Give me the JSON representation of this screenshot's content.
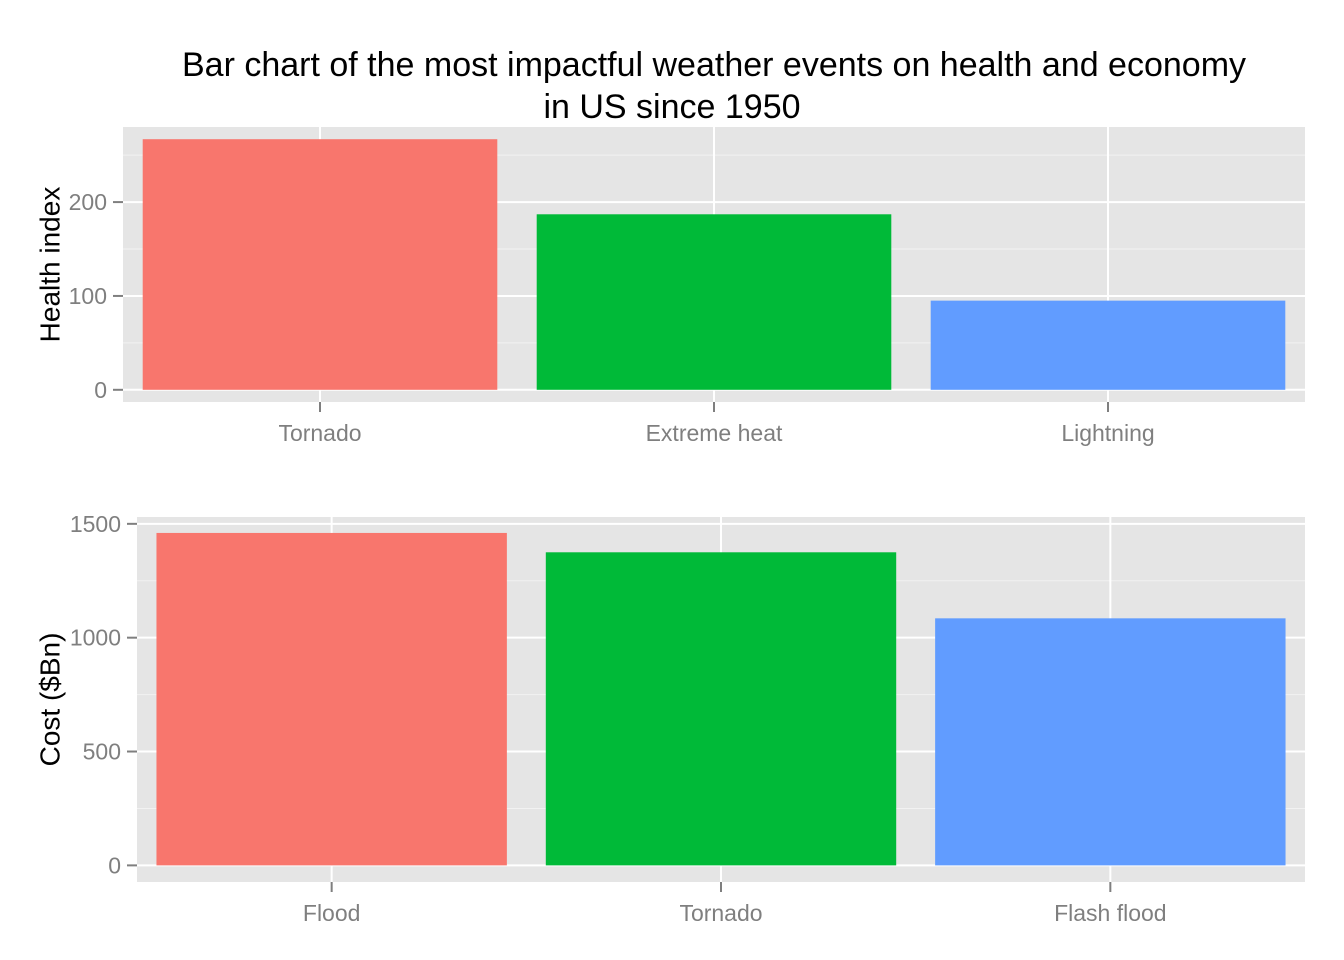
{
  "title_line_1": "Bar chart of the most impactful weather events on health and economy",
  "title_line_2": "in US since 1950",
  "colors": {
    "panel_bg": "#e5e5e5",
    "grid_major": "#ffffff",
    "grid_minor": "#f2f2f2",
    "tick_text": "#7f7f7f",
    "bar_1": "#f8766d",
    "bar_2": "#00ba38",
    "bar_3": "#619cff"
  },
  "chart_data": [
    {
      "type": "bar",
      "ylabel": "Health index",
      "categories": [
        "Tornado",
        "Extreme heat",
        "Lightning"
      ],
      "values": [
        267,
        187,
        95
      ],
      "ylim": [
        -13,
        280
      ],
      "yticks": [
        0,
        100,
        200
      ],
      "ytick_labels": [
        "0",
        "100",
        "200"
      ],
      "grid": true,
      "legend": "none"
    },
    {
      "type": "bar",
      "ylabel": "Cost ($Bn)",
      "categories": [
        "Flood",
        "Tornado",
        "Flash flood"
      ],
      "values": [
        1460,
        1375,
        1085
      ],
      "ylim": [
        -73,
        1530
      ],
      "yticks": [
        0,
        500,
        1000,
        1500
      ],
      "ytick_labels": [
        "0",
        "500",
        "1000",
        "1500"
      ],
      "grid": true,
      "legend": "none"
    }
  ]
}
